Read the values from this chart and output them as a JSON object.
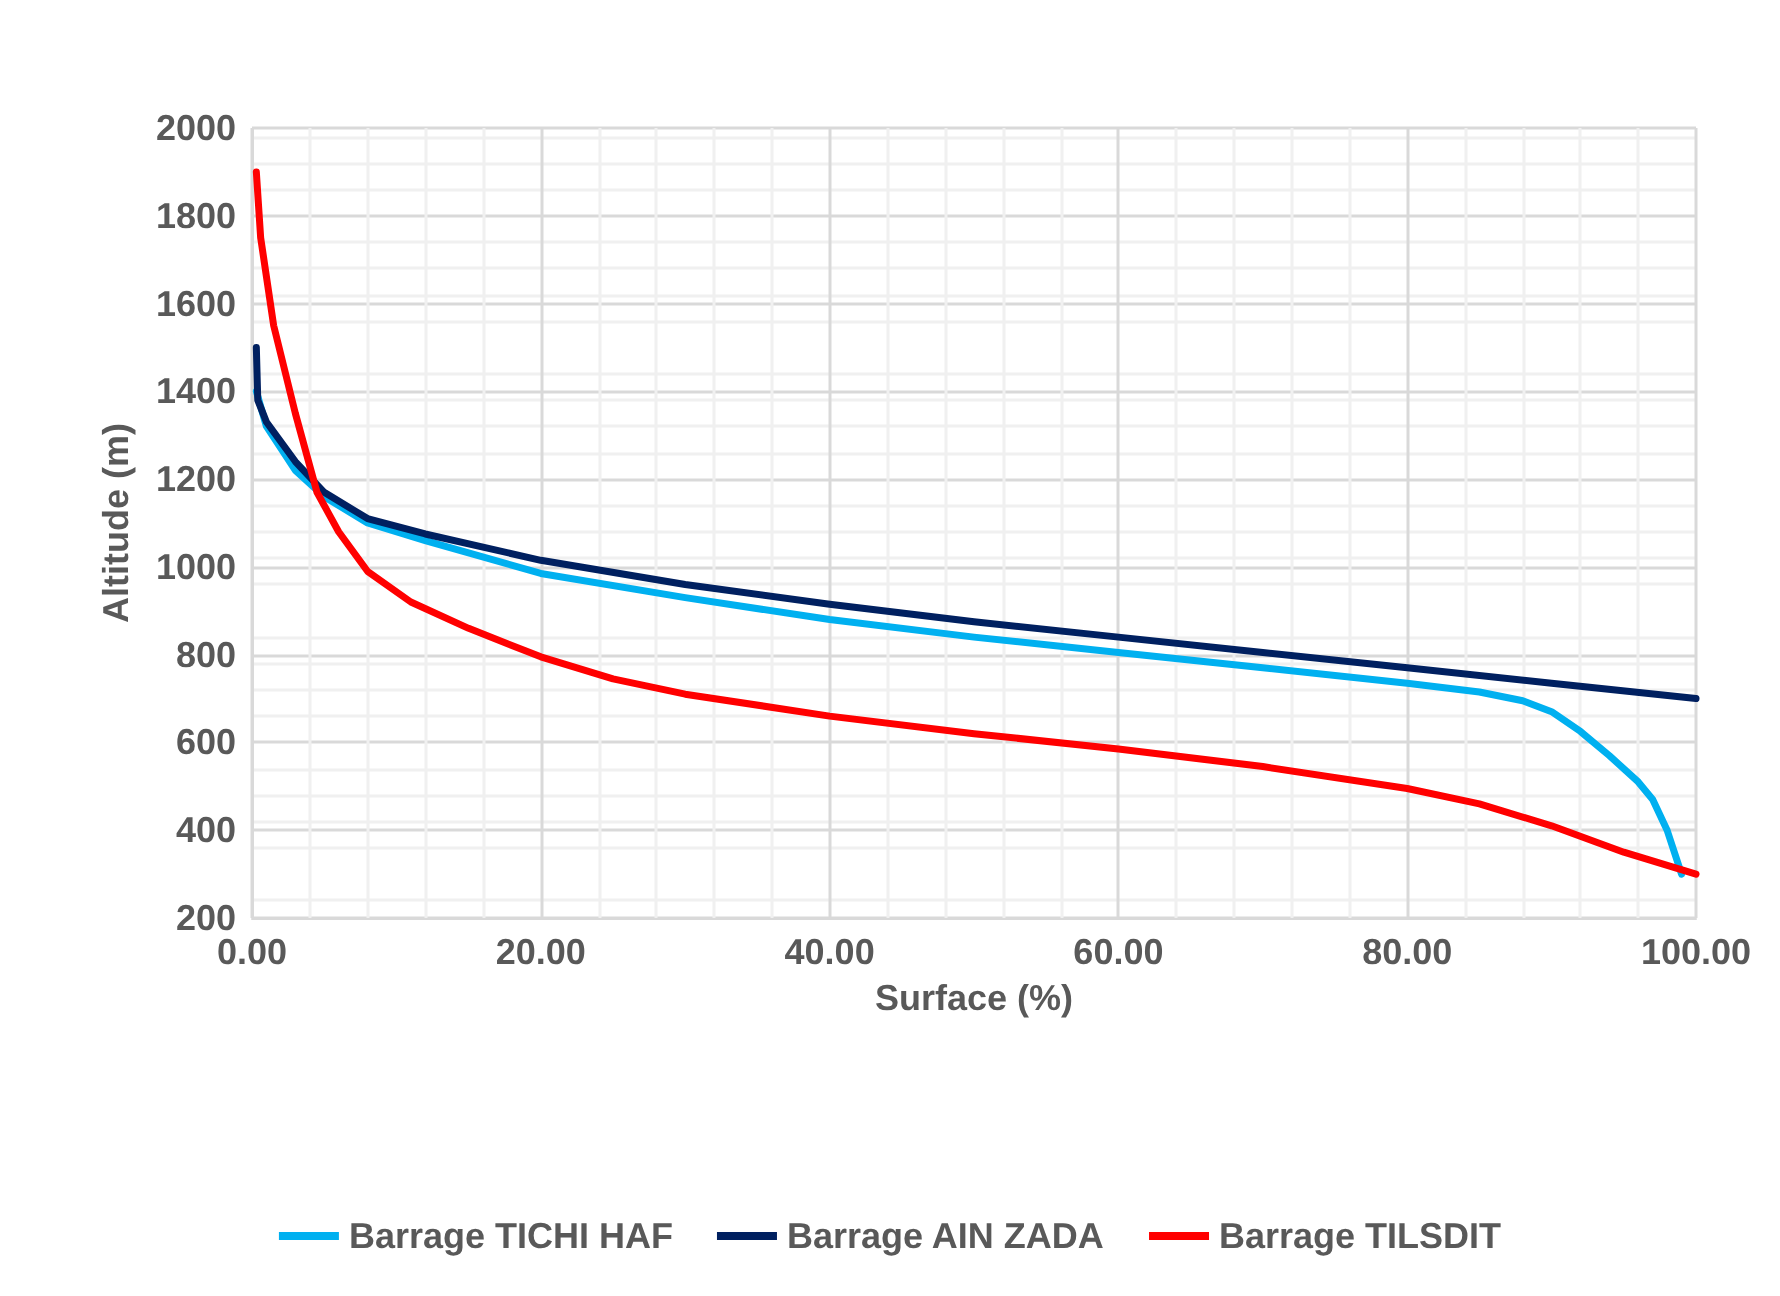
{
  "chart_data": {
    "type": "line",
    "xlabel": "Surface (%)",
    "ylabel": "Altitude (m)",
    "xlim": [
      0,
      100
    ],
    "xticks": [
      {
        "value": 0,
        "label": "0.00"
      },
      {
        "value": 20,
        "label": "20.00"
      },
      {
        "value": 40,
        "label": "40.00"
      },
      {
        "value": 60,
        "label": "60.00"
      },
      {
        "value": 80,
        "label": "80.00"
      },
      {
        "value": 100,
        "label": "100.00"
      }
    ],
    "ylim": [
      200,
      2000
    ],
    "yticks": [
      200,
      400,
      600,
      800,
      1000,
      1200,
      1400,
      1600,
      1800,
      2000
    ],
    "grid": true,
    "legend": "bottom",
    "marker": "none",
    "line_style": "solid",
    "series": [
      {
        "name": "Barrage TICHI HAF",
        "color": "#00b0f0",
        "x": [
          0.3,
          1,
          3,
          5,
          8,
          12,
          20,
          30,
          40,
          50,
          60,
          70,
          80,
          85,
          88,
          90,
          92,
          94,
          96,
          97,
          98,
          99
        ],
        "values": [
          1400,
          1320,
          1220,
          1160,
          1100,
          1060,
          985,
          930,
          880,
          840,
          805,
          770,
          735,
          715,
          695,
          670,
          625,
          570,
          510,
          470,
          400,
          300
        ]
      },
      {
        "name": "Barrage AIN ZADA",
        "color": "#002060",
        "x": [
          0.3,
          0.4,
          1,
          3,
          5,
          8,
          12,
          20,
          30,
          40,
          50,
          60,
          70,
          80,
          90,
          100
        ],
        "values": [
          1500,
          1380,
          1330,
          1240,
          1170,
          1110,
          1075,
          1015,
          960,
          915,
          875,
          840,
          805,
          770,
          735,
          700
        ]
      },
      {
        "name": "Barrage TILSDIT",
        "color": "#ff0000",
        "x": [
          0.3,
          0.6,
          1.5,
          3,
          4.5,
          6,
          8,
          11,
          15,
          20,
          25,
          30,
          40,
          50,
          60,
          70,
          80,
          85,
          90,
          95,
          100
        ],
        "values": [
          1900,
          1750,
          1550,
          1350,
          1170,
          1080,
          990,
          920,
          860,
          795,
          745,
          710,
          660,
          620,
          585,
          545,
          495,
          460,
          410,
          350,
          300
        ]
      }
    ]
  }
}
